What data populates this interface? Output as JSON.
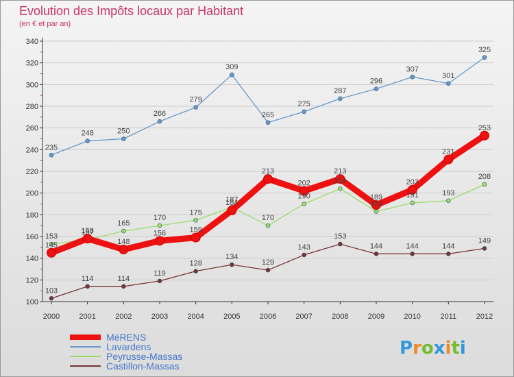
{
  "chart_data": {
    "type": "line",
    "title": "Evolution des Impôts locaux par Habitant",
    "subtitle": "(en € et par an)",
    "xlabel": "",
    "ylabel": "",
    "ylim": [
      100,
      340
    ],
    "y_ticks": [
      100,
      120,
      140,
      160,
      180,
      200,
      220,
      240,
      260,
      280,
      300,
      320,
      340
    ],
    "grid": true,
    "legend_position": "bottom-left",
    "categories": [
      "2000",
      "2001",
      "2002",
      "2003",
      "2004",
      "2005",
      "2006",
      "2007",
      "2008",
      "2009",
      "2010",
      "2011",
      "2012"
    ],
    "series": [
      {
        "name": "MéRENS",
        "color": "#ee1111",
        "values": [
          145,
          158,
          148,
          156,
          159,
          184,
          213,
          202,
          213,
          189,
          203,
          231,
          253
        ]
      },
      {
        "name": "Lavardens",
        "color": "#6699cc",
        "values": [
          235,
          248,
          250,
          266,
          279,
          309,
          265,
          275,
          287,
          296,
          307,
          301,
          325
        ]
      },
      {
        "name": "Peyrusse-Massas",
        "color": "#99dd66",
        "values": [
          153,
          157,
          165,
          170,
          175,
          187,
          170,
          190,
          204,
          183,
          191,
          193,
          208
        ]
      },
      {
        "name": "Castillon-Massas",
        "color": "#773333",
        "values": [
          103,
          114,
          114,
          119,
          128,
          134,
          129,
          143,
          153,
          144,
          144,
          144,
          149
        ]
      }
    ]
  },
  "brand": {
    "letters": [
      "P",
      "r",
      "o",
      "x",
      "i",
      "t",
      "i"
    ],
    "colors": [
      "#3399dd",
      "#ee8822",
      "#77bb33",
      "#3399dd",
      "#ee8822",
      "#77bb33",
      "#3399dd"
    ]
  }
}
